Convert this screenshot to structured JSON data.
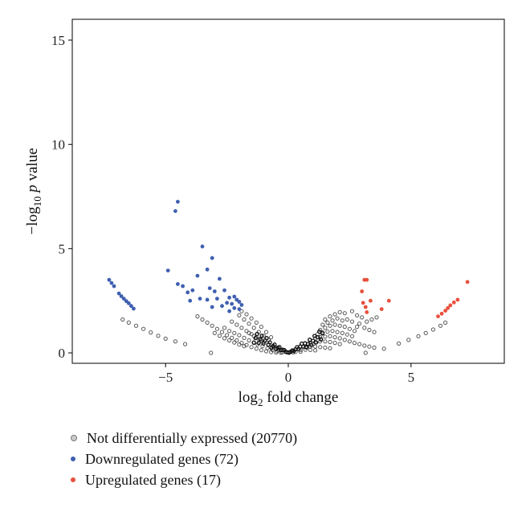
{
  "chart_data": {
    "type": "scatter",
    "title": "",
    "xlabel": {
      "base": "log",
      "sub": "2",
      "rest": " fold change"
    },
    "ylabel": {
      "pre": "−log",
      "sub": "10",
      "italic": " p",
      "rest": " value"
    },
    "xlim": [
      -8.8,
      8.8
    ],
    "ylim": [
      -0.5,
      16
    ],
    "xticks": [
      -5,
      0,
      5
    ],
    "xtick_labels": [
      "−5",
      "0",
      "5"
    ],
    "yticks": [
      0,
      5,
      10,
      15
    ],
    "ytick_labels": [
      "0",
      "5",
      "10",
      "15"
    ],
    "grid": false,
    "legend_placement": "bottom",
    "series": [
      {
        "name": "Not differentially expressed (20770)",
        "color": "#555555",
        "marker": "hollow-circle",
        "points": [
          [
            -6.2,
            1.3
          ],
          [
            -5.9,
            1.15
          ],
          [
            -5.6,
            0.98
          ],
          [
            -5.3,
            0.82
          ],
          [
            -5.0,
            0.68
          ],
          [
            -4.6,
            0.55
          ],
          [
            -4.2,
            0.42
          ],
          [
            -3.15,
            0.0
          ],
          [
            -6.5,
            1.45
          ],
          [
            -6.75,
            1.6
          ],
          [
            -3.7,
            1.75
          ],
          [
            -3.5,
            1.6
          ],
          [
            -3.3,
            1.45
          ],
          [
            -3.1,
            1.3
          ],
          [
            -2.9,
            1.15
          ],
          [
            -2.7,
            1.0
          ],
          [
            -2.5,
            0.85
          ],
          [
            -2.3,
            0.72
          ],
          [
            -2.1,
            0.6
          ],
          [
            -1.9,
            0.48
          ],
          [
            -1.7,
            0.38
          ],
          [
            -1.5,
            0.28
          ],
          [
            -1.3,
            0.2
          ],
          [
            -1.1,
            0.13
          ],
          [
            -0.9,
            0.08
          ],
          [
            -0.7,
            0.04
          ],
          [
            -0.5,
            0.02
          ],
          [
            -0.3,
            0.01
          ],
          [
            -3.0,
            0.95
          ],
          [
            -2.8,
            0.82
          ],
          [
            -2.6,
            0.7
          ],
          [
            -2.4,
            0.6
          ],
          [
            -2.2,
            0.5
          ],
          [
            -2.0,
            0.4
          ],
          [
            -1.8,
            0.32
          ],
          [
            -2.6,
            1.2
          ],
          [
            -2.4,
            1.05
          ],
          [
            -2.2,
            0.95
          ],
          [
            -2.0,
            0.85
          ],
          [
            -1.8,
            0.72
          ],
          [
            -1.6,
            0.6
          ],
          [
            -1.4,
            0.48
          ],
          [
            -2.3,
            1.5
          ],
          [
            -2.1,
            1.35
          ],
          [
            -1.9,
            1.2
          ],
          [
            -1.7,
            1.05
          ],
          [
            -1.5,
            0.9
          ],
          [
            -1.3,
            0.75
          ],
          [
            -1.1,
            0.6
          ],
          [
            -2.0,
            1.8
          ],
          [
            -1.8,
            1.6
          ],
          [
            -1.6,
            1.4
          ],
          [
            -1.4,
            1.2
          ],
          [
            -1.2,
            1.0
          ],
          [
            -1.0,
            0.82
          ],
          [
            -0.8,
            0.62
          ],
          [
            -1.9,
            2.0
          ],
          [
            -1.7,
            1.85
          ],
          [
            -1.5,
            1.65
          ],
          [
            -1.3,
            1.45
          ],
          [
            -1.1,
            1.25
          ],
          [
            -0.9,
            1.0
          ],
          [
            -0.7,
            0.75
          ],
          [
            -1.6,
            0.95
          ],
          [
            -1.4,
            0.8
          ],
          [
            -1.2,
            0.65
          ],
          [
            -1.0,
            0.52
          ],
          [
            -0.8,
            0.4
          ],
          [
            -0.6,
            0.28
          ],
          [
            -0.4,
            0.15
          ],
          [
            -1.25,
            0.4
          ],
          [
            -1.05,
            0.32
          ],
          [
            -0.85,
            0.22
          ],
          [
            -0.65,
            0.14
          ],
          [
            -0.45,
            0.08
          ],
          [
            -0.25,
            0.03
          ],
          [
            3.15,
            0.0
          ],
          [
            3.9,
            0.2
          ],
          [
            4.5,
            0.45
          ],
          [
            4.9,
            0.62
          ],
          [
            5.3,
            0.8
          ],
          [
            5.6,
            0.95
          ],
          [
            5.9,
            1.12
          ],
          [
            6.2,
            1.3
          ],
          [
            6.4,
            1.45
          ],
          [
            1.5,
            1.6
          ],
          [
            1.7,
            1.75
          ],
          [
            1.9,
            1.85
          ],
          [
            2.1,
            1.95
          ],
          [
            2.3,
            1.9
          ],
          [
            2.6,
            2.0
          ],
          [
            2.8,
            1.8
          ],
          [
            3.0,
            1.7
          ],
          [
            1.4,
            1.35
          ],
          [
            1.6,
            1.45
          ],
          [
            1.8,
            1.55
          ],
          [
            2.0,
            1.65
          ],
          [
            2.2,
            1.55
          ],
          [
            2.4,
            1.6
          ],
          [
            2.6,
            1.5
          ],
          [
            1.3,
            1.1
          ],
          [
            1.5,
            1.2
          ],
          [
            1.7,
            1.3
          ],
          [
            1.9,
            1.35
          ],
          [
            2.1,
            1.3
          ],
          [
            2.3,
            1.25
          ],
          [
            2.5,
            1.15
          ],
          [
            2.7,
            1.05
          ],
          [
            1.2,
            0.9
          ],
          [
            1.4,
            0.98
          ],
          [
            1.6,
            1.02
          ],
          [
            1.8,
            1.05
          ],
          [
            2.0,
            1.0
          ],
          [
            2.2,
            0.95
          ],
          [
            2.4,
            0.88
          ],
          [
            2.6,
            0.8
          ],
          [
            1.1,
            0.7
          ],
          [
            1.3,
            0.75
          ],
          [
            1.5,
            0.78
          ],
          [
            1.7,
            0.8
          ],
          [
            1.9,
            0.75
          ],
          [
            2.1,
            0.7
          ],
          [
            2.3,
            0.62
          ],
          [
            2.5,
            0.55
          ],
          [
            2.7,
            0.48
          ],
          [
            2.9,
            0.42
          ],
          [
            3.1,
            0.35
          ],
          [
            3.3,
            0.3
          ],
          [
            3.5,
            0.25
          ],
          [
            0.9,
            0.45
          ],
          [
            1.1,
            0.5
          ],
          [
            1.3,
            0.55
          ],
          [
            1.5,
            0.55
          ],
          [
            1.7,
            0.52
          ],
          [
            1.9,
            0.48
          ],
          [
            2.1,
            0.42
          ],
          [
            0.7,
            0.28
          ],
          [
            0.9,
            0.3
          ],
          [
            1.1,
            0.3
          ],
          [
            1.3,
            0.28
          ],
          [
            1.5,
            0.25
          ],
          [
            1.7,
            0.22
          ],
          [
            0.5,
            0.14
          ],
          [
            0.7,
            0.15
          ],
          [
            0.9,
            0.14
          ],
          [
            1.1,
            0.12
          ],
          [
            0.3,
            0.05
          ],
          [
            0.5,
            0.06
          ],
          [
            0.2,
            0.02
          ],
          [
            3.2,
            1.5
          ],
          [
            3.4,
            1.6
          ],
          [
            3.6,
            1.7
          ],
          [
            2.9,
            1.4
          ],
          [
            2.8,
            1.25
          ],
          [
            3.1,
            1.2
          ],
          [
            3.3,
            1.1
          ],
          [
            3.5,
            1.0
          ]
        ]
      },
      {
        "name": "Downregulated genes (72)",
        "color": "#3f5fb0",
        "marker": "filled-circle",
        "points": [
          [
            -4.5,
            7.25
          ],
          [
            -4.6,
            6.8
          ],
          [
            -3.5,
            5.1
          ],
          [
            -3.1,
            4.55
          ],
          [
            -4.9,
            3.95
          ],
          [
            -3.3,
            4.0
          ],
          [
            -3.7,
            3.7
          ],
          [
            -2.8,
            3.55
          ],
          [
            -4.5,
            3.3
          ],
          [
            -4.3,
            3.2
          ],
          [
            -3.9,
            3.0
          ],
          [
            -3.2,
            3.1
          ],
          [
            -3.0,
            2.95
          ],
          [
            -2.6,
            3.0
          ],
          [
            -4.1,
            2.9
          ],
          [
            -3.6,
            2.6
          ],
          [
            -3.3,
            2.55
          ],
          [
            -2.9,
            2.6
          ],
          [
            -2.4,
            2.65
          ],
          [
            -2.2,
            2.7
          ],
          [
            -2.1,
            2.55
          ],
          [
            -2.5,
            2.4
          ],
          [
            -2.3,
            2.35
          ],
          [
            -2.0,
            2.45
          ],
          [
            -1.9,
            2.3
          ],
          [
            -2.7,
            2.25
          ],
          [
            -3.1,
            2.2
          ],
          [
            -4.0,
            2.5
          ],
          [
            -2.2,
            2.15
          ],
          [
            -2.0,
            2.1
          ],
          [
            -2.4,
            2.0
          ],
          [
            -7.3,
            3.5
          ],
          [
            -7.2,
            3.35
          ],
          [
            -7.1,
            3.2
          ],
          [
            -6.9,
            2.85
          ],
          [
            -6.8,
            2.72
          ],
          [
            -6.7,
            2.6
          ],
          [
            -6.6,
            2.48
          ],
          [
            -6.5,
            2.38
          ],
          [
            -6.4,
            2.25
          ],
          [
            -6.3,
            2.12
          ]
        ]
      },
      {
        "name": "Upregulated genes (17)",
        "color": "#e8503c",
        "marker": "filled-circle",
        "points": [
          [
            3.1,
            3.5
          ],
          [
            3.2,
            3.5
          ],
          [
            3.0,
            2.95
          ],
          [
            3.15,
            2.2
          ],
          [
            3.35,
            2.5
          ],
          [
            3.2,
            1.95
          ],
          [
            3.8,
            2.1
          ],
          [
            4.1,
            2.5
          ],
          [
            7.3,
            3.4
          ],
          [
            6.9,
            2.55
          ],
          [
            6.75,
            2.42
          ],
          [
            6.6,
            2.28
          ],
          [
            6.5,
            2.15
          ],
          [
            6.4,
            2.02
          ],
          [
            6.25,
            1.88
          ],
          [
            6.1,
            1.75
          ],
          [
            3.05,
            2.4
          ]
        ]
      }
    ]
  }
}
